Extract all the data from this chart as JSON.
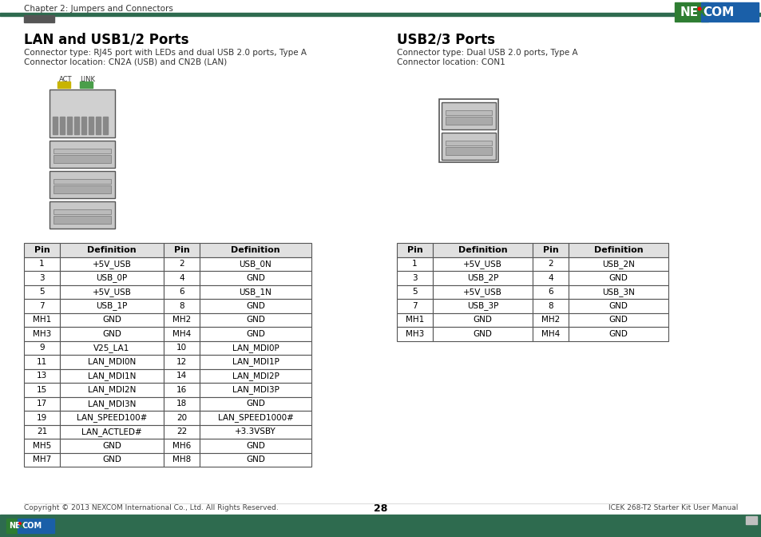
{
  "page_title": "Chapter 2: Jumpers and Connectors",
  "page_num": "28",
  "footer_left": "Copyright © 2013 NEXCOM International Co., Ltd. All Rights Reserved.",
  "footer_right": "ICEK 268-T2 Starter Kit User Manual",
  "bg_color": "#ffffff",
  "header_line_color": "#2e6b4f",
  "footer_bar_color": "#2e6b4f",
  "section1_title": "LAN and USB1/2 Ports",
  "section1_desc1": "Connector type: RJ45 port with LEDs and dual USB 2.0 ports, Type A",
  "section1_desc2": "Connector location: CN2A (USB) and CN2B (LAN)",
  "section2_title": "USB2/3 Ports",
  "section2_desc1": "Connector type: Dual USB 2.0 ports, Type A",
  "section2_desc2": "Connector location: CON1",
  "table1_headers": [
    "Pin",
    "Definition",
    "Pin",
    "Definition"
  ],
  "table1_rows": [
    [
      "1",
      "+5V_USB",
      "2",
      "USB_0N"
    ],
    [
      "3",
      "USB_0P",
      "4",
      "GND"
    ],
    [
      "5",
      "+5V_USB",
      "6",
      "USB_1N"
    ],
    [
      "7",
      "USB_1P",
      "8",
      "GND"
    ],
    [
      "MH1",
      "GND",
      "MH2",
      "GND"
    ],
    [
      "MH3",
      "GND",
      "MH4",
      "GND"
    ],
    [
      "9",
      "V25_LA1",
      "10",
      "LAN_MDI0P"
    ],
    [
      "11",
      "LAN_MDI0N",
      "12",
      "LAN_MDI1P"
    ],
    [
      "13",
      "LAN_MDI1N",
      "14",
      "LAN_MDI2P"
    ],
    [
      "15",
      "LAN_MDI2N",
      "16",
      "LAN_MDI3P"
    ],
    [
      "17",
      "LAN_MDI3N",
      "18",
      "GND"
    ],
    [
      "19",
      "LAN_SPEED100#",
      "20",
      "LAN_SPEED1000#"
    ],
    [
      "21",
      "LAN_ACTLED#",
      "22",
      "+3.3VSBY"
    ],
    [
      "MH5",
      "GND",
      "MH6",
      "GND"
    ],
    [
      "MH7",
      "GND",
      "MH8",
      "GND"
    ]
  ],
  "table2_headers": [
    "Pin",
    "Definition",
    "Pin",
    "Definition"
  ],
  "table2_rows": [
    [
      "1",
      "+5V_USB",
      "2",
      "USB_2N"
    ],
    [
      "3",
      "USB_2P",
      "4",
      "GND"
    ],
    [
      "5",
      "+5V_USB",
      "6",
      "USB_3N"
    ],
    [
      "7",
      "USB_3P",
      "8",
      "GND"
    ],
    [
      "MH1",
      "GND",
      "MH2",
      "GND"
    ],
    [
      "MH3",
      "GND",
      "MH4",
      "GND"
    ]
  ],
  "table_header_bg": "#e0e0e0",
  "table_border_color": "#555555",
  "table_text_color": "#000000",
  "title_color": "#000000",
  "desc_color": "#333333",
  "nexcom_green": "#2e7d32",
  "nexcom_blue": "#1a5fa8",
  "act_color": "#c8b400",
  "link_color": "#4a9e4a"
}
